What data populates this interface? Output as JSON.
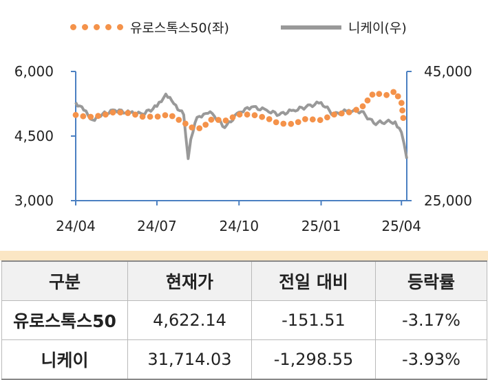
{
  "legend": {
    "series1": "유로스톡스50(좌)",
    "series2": "니케이(우)"
  },
  "chart_data": {
    "type": "line",
    "x_ticks": [
      "24/04",
      "24/07",
      "24/10",
      "25/01",
      "25/04"
    ],
    "y_left": {
      "ticks": [
        "3,000",
        "4,500",
        "6,000"
      ],
      "range": [
        3000,
        6000
      ]
    },
    "y_right": {
      "ticks": [
        "25,000",
        "45,000"
      ],
      "range": [
        25000,
        45000
      ]
    },
    "series": [
      {
        "name": "유로스톡스50(좌)",
        "axis": "left",
        "style": "dotted",
        "color": "#F4924A",
        "x": [
          "2024-04-01",
          "2024-04-15",
          "2024-05-01",
          "2024-05-15",
          "2024-06-01",
          "2024-06-15",
          "2024-07-01",
          "2024-07-15",
          "2024-08-01",
          "2024-08-10",
          "2024-08-20",
          "2024-09-01",
          "2024-09-15",
          "2024-10-01",
          "2024-10-15",
          "2024-11-01",
          "2024-11-15",
          "2024-12-01",
          "2024-12-15",
          "2025-01-01",
          "2025-01-15",
          "2025-02-01",
          "2025-02-15",
          "2025-03-01",
          "2025-03-15",
          "2025-03-25",
          "2025-04-01",
          "2025-04-04"
        ],
        "values": [
          4990,
          4940,
          4980,
          5060,
          5030,
          4950,
          4950,
          5000,
          4800,
          4690,
          4680,
          4900,
          4850,
          5000,
          5000,
          4920,
          4790,
          4780,
          4900,
          4870,
          5000,
          5050,
          5150,
          5500,
          5450,
          5540,
          5280,
          4760
        ]
      },
      {
        "name": "니케이(우)",
        "axis": "right",
        "style": "solid",
        "color": "#999999",
        "x": [
          "2024-04-01",
          "2024-04-10",
          "2024-04-20",
          "2024-05-01",
          "2024-05-15",
          "2024-06-01",
          "2024-06-15",
          "2024-07-01",
          "2024-07-11",
          "2024-07-20",
          "2024-07-31",
          "2024-08-05",
          "2024-08-08",
          "2024-08-15",
          "2024-08-25",
          "2024-09-01",
          "2024-09-15",
          "2024-10-01",
          "2024-10-15",
          "2024-11-01",
          "2024-11-15",
          "2024-12-01",
          "2024-12-15",
          "2025-01-01",
          "2025-01-15",
          "2025-02-01",
          "2025-02-15",
          "2025-03-01",
          "2025-03-15",
          "2025-03-25",
          "2025-04-01",
          "2025-04-04",
          "2025-04-07"
        ],
        "values": [
          40200,
          39000,
          37500,
          38400,
          39000,
          38600,
          38400,
          39600,
          41500,
          40000,
          38300,
          31500,
          34500,
          37900,
          38500,
          38500,
          36300,
          38700,
          39500,
          39000,
          38300,
          39000,
          39500,
          40200,
          38300,
          39000,
          38800,
          37000,
          37200,
          37200,
          35600,
          33800,
          31500
        ]
      }
    ]
  },
  "table": {
    "headers": [
      "구분",
      "현재가",
      "전일 대비",
      "등락률"
    ],
    "rows": [
      [
        "유로스톡스50",
        "4,622.14",
        "-151.51",
        "-3.17%"
      ],
      [
        "니케이",
        "31,714.03",
        "-1,298.55",
        "-3.93%"
      ]
    ]
  }
}
